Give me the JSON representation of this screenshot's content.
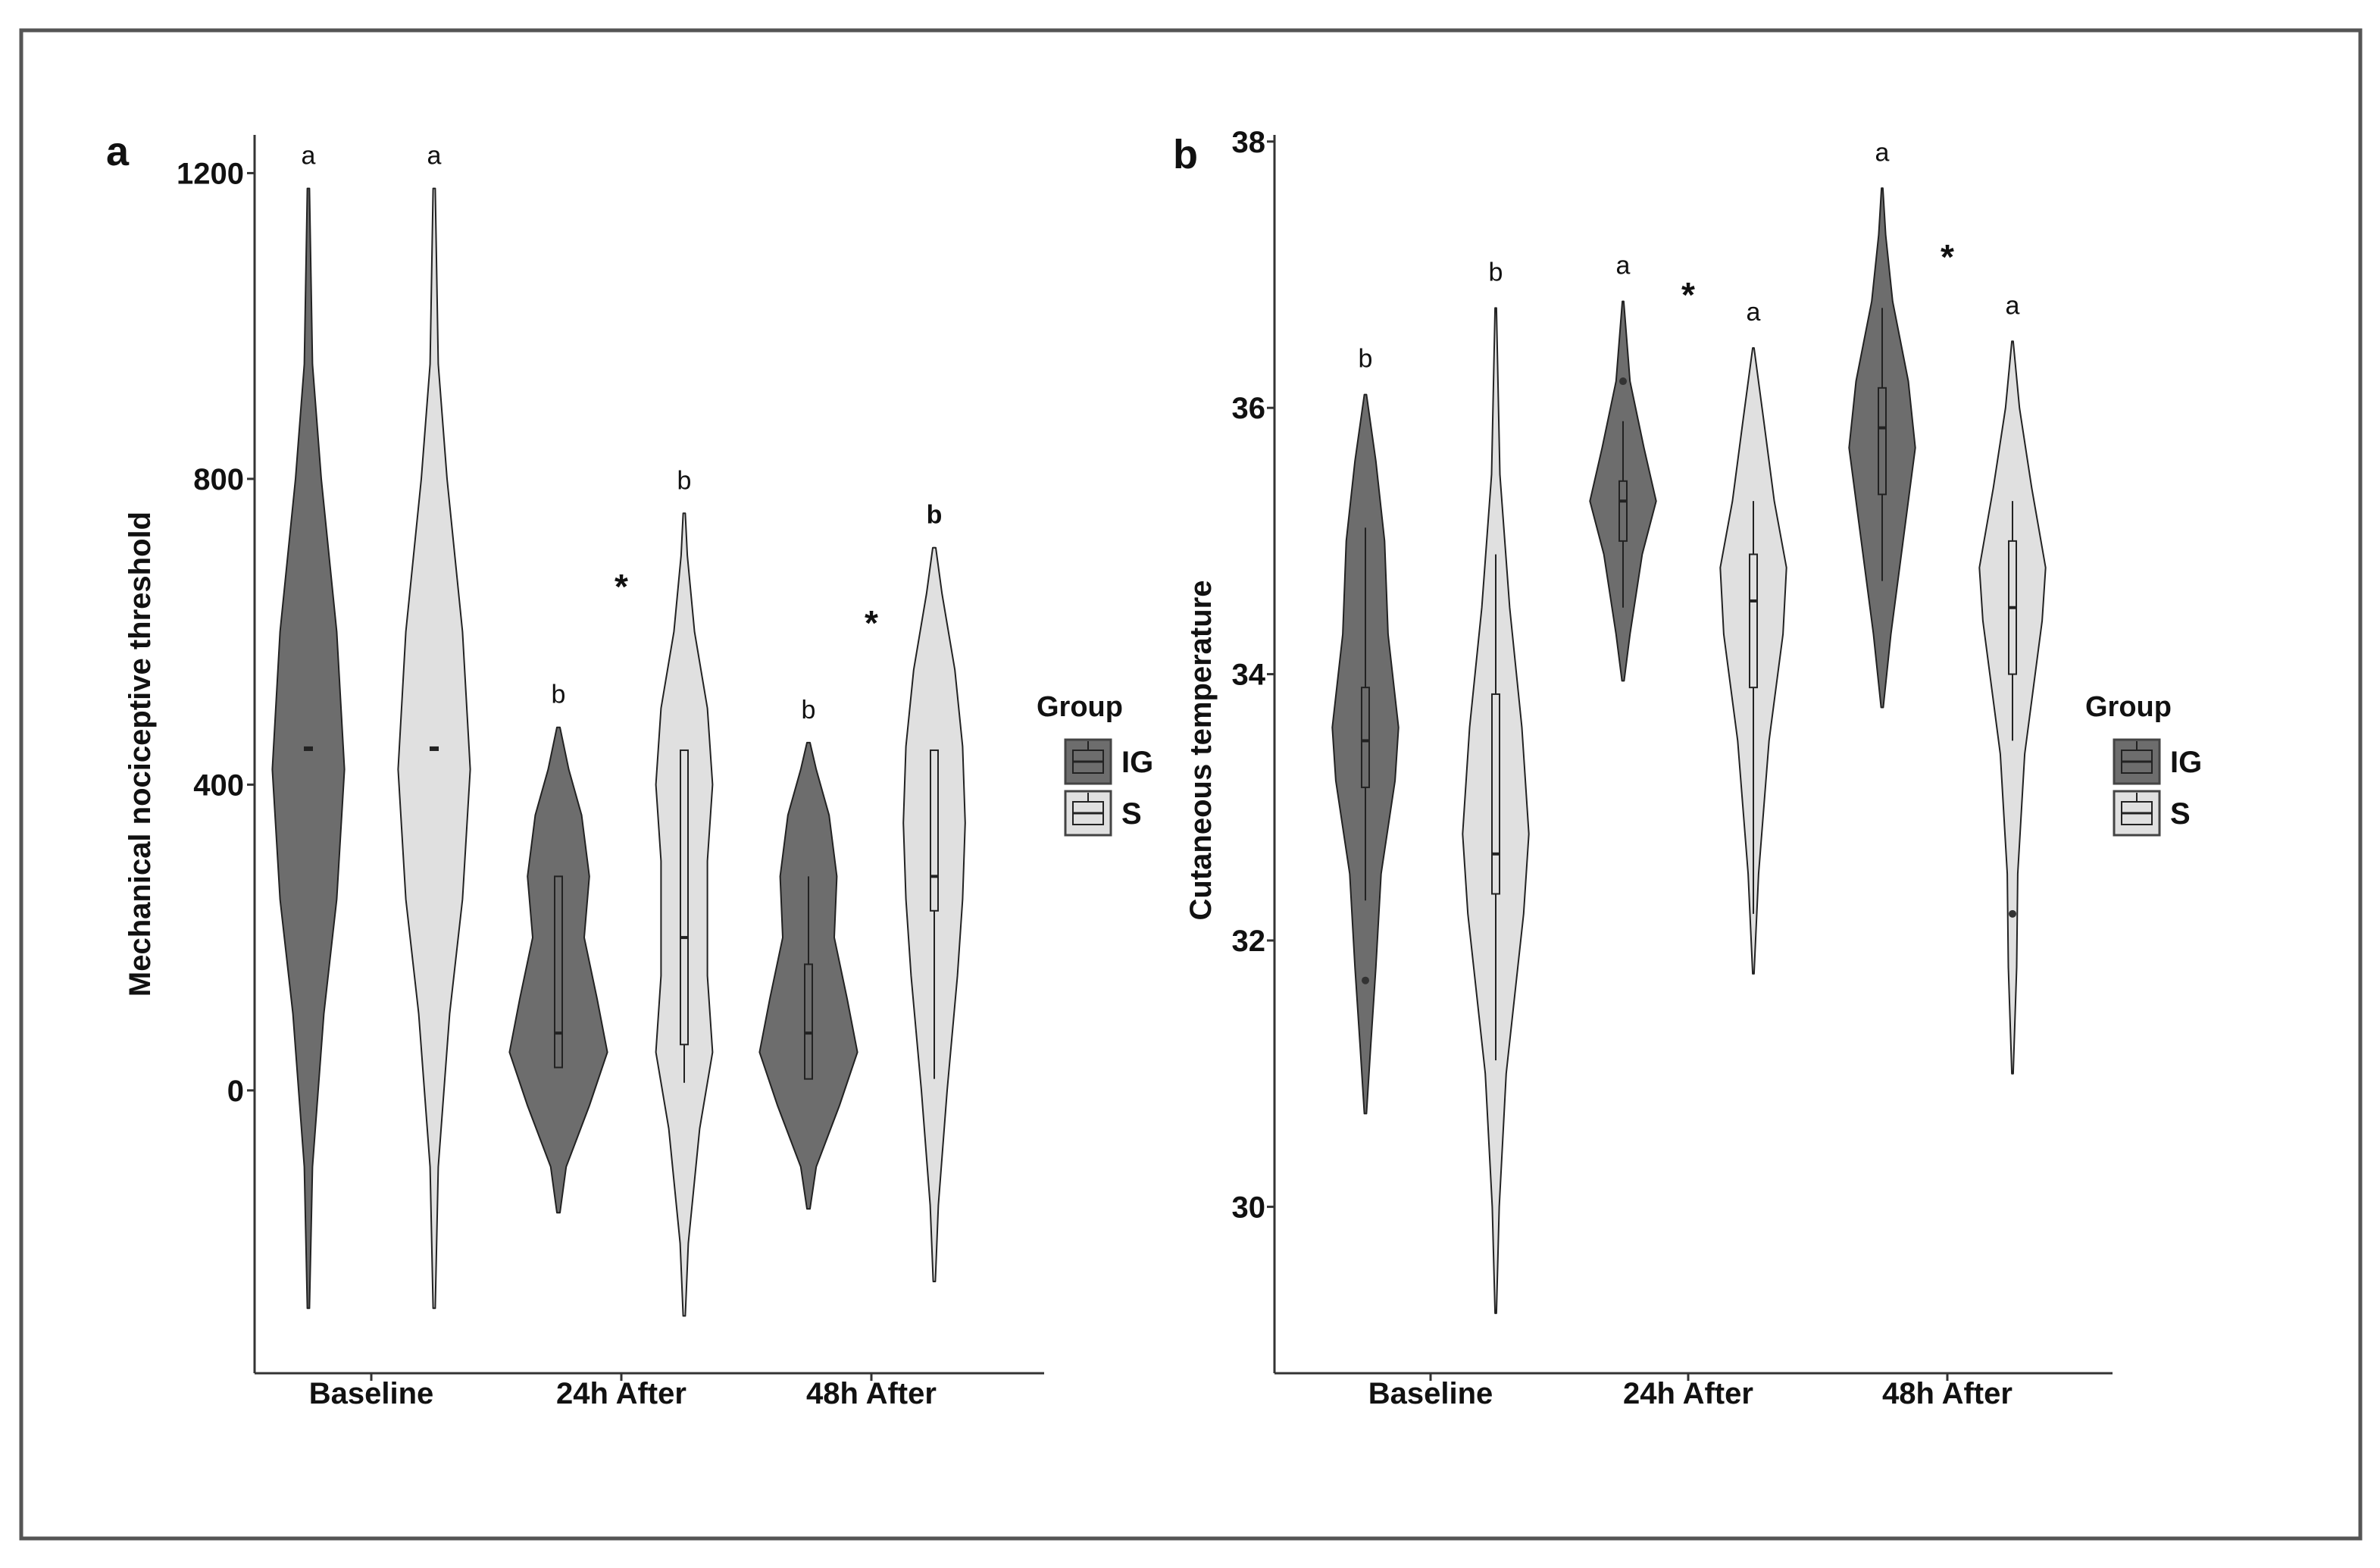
{
  "colors": {
    "IG": "#6d6d6d",
    "S": "#e0e0e0",
    "frame": "#555555",
    "axis": "#333333"
  },
  "chart_data": [
    {
      "panel": "a",
      "type": "violin",
      "ylabel": "Mechanical nociceptive threshold",
      "xlabel": "",
      "ylim": [
        -370,
        1250
      ],
      "yticks": [
        0,
        400,
        800,
        1200
      ],
      "ytick_labels": [
        "0",
        "400",
        "800",
        "1200"
      ],
      "categories": [
        "Baseline",
        "24h After",
        "48h After"
      ],
      "legend": {
        "title": "Group",
        "entries": [
          "IG",
          "S"
        ]
      },
      "groups": [
        {
          "name": "IG",
          "category": "Baseline",
          "letter": "a",
          "min": -285,
          "max": 1180,
          "profile": [
            [
              -285,
              0.02
            ],
            [
              -100,
              0.08
            ],
            [
              100,
              0.3
            ],
            [
              250,
              0.55
            ],
            [
              420,
              0.7
            ],
            [
              600,
              0.55
            ],
            [
              800,
              0.25
            ],
            [
              950,
              0.08
            ],
            [
              1180,
              0.02
            ]
          ],
          "box": {
            "q1": 445,
            "median": 447,
            "q3": 449,
            "wlo": 445,
            "whi": 449
          }
        },
        {
          "name": "S",
          "category": "Baseline",
          "letter": "a",
          "min": -285,
          "max": 1180,
          "profile": [
            [
              -285,
              0.02
            ],
            [
              -100,
              0.08
            ],
            [
              100,
              0.3
            ],
            [
              250,
              0.55
            ],
            [
              420,
              0.7
            ],
            [
              600,
              0.55
            ],
            [
              800,
              0.25
            ],
            [
              950,
              0.08
            ],
            [
              1180,
              0.02
            ]
          ],
          "box": {
            "q1": 445,
            "median": 447,
            "q3": 449,
            "wlo": 445,
            "whi": 449
          }
        },
        {
          "name": "IG",
          "category": "24h After",
          "letter": "b",
          "min": -160,
          "max": 475,
          "profile": [
            [
              -160,
              0.03
            ],
            [
              -100,
              0.15
            ],
            [
              -20,
              0.6
            ],
            [
              50,
              0.95
            ],
            [
              120,
              0.75
            ],
            [
              200,
              0.5
            ],
            [
              280,
              0.6
            ],
            [
              360,
              0.45
            ],
            [
              420,
              0.2
            ],
            [
              475,
              0.03
            ]
          ],
          "box": {
            "q1": 30,
            "median": 75,
            "q3": 280,
            "wlo": 30,
            "whi": 280
          }
        },
        {
          "name": "S",
          "category": "24h After",
          "letter": "b",
          "min": -295,
          "max": 755,
          "profile": [
            [
              -295,
              0.02
            ],
            [
              -200,
              0.08
            ],
            [
              -50,
              0.3
            ],
            [
              50,
              0.55
            ],
            [
              150,
              0.45
            ],
            [
              300,
              0.45
            ],
            [
              400,
              0.55
            ],
            [
              500,
              0.45
            ],
            [
              600,
              0.2
            ],
            [
              700,
              0.06
            ],
            [
              755,
              0.02
            ]
          ],
          "box": {
            "q1": 60,
            "median": 200,
            "q3": 445,
            "wlo": 10,
            "whi": 445
          }
        },
        {
          "name": "IG",
          "category": "48h After",
          "letter": "b",
          "min": -155,
          "max": 455,
          "profile": [
            [
              -155,
              0.03
            ],
            [
              -100,
              0.15
            ],
            [
              -20,
              0.6
            ],
            [
              50,
              0.95
            ],
            [
              120,
              0.75
            ],
            [
              200,
              0.5
            ],
            [
              280,
              0.55
            ],
            [
              360,
              0.4
            ],
            [
              420,
              0.15
            ],
            [
              455,
              0.03
            ]
          ],
          "box": {
            "q1": 15,
            "median": 75,
            "q3": 165,
            "wlo": 15,
            "whi": 280
          }
        },
        {
          "name": "S",
          "category": "48h After",
          "letter": "b",
          "min": -250,
          "max": 710,
          "profile": [
            [
              -250,
              0.02
            ],
            [
              -150,
              0.08
            ],
            [
              0,
              0.25
            ],
            [
              150,
              0.45
            ],
            [
              250,
              0.55
            ],
            [
              350,
              0.6
            ],
            [
              450,
              0.55
            ],
            [
              550,
              0.4
            ],
            [
              650,
              0.15
            ],
            [
              710,
              0.03
            ]
          ],
          "box": {
            "q1": 235,
            "median": 280,
            "q3": 445,
            "wlo": 15,
            "whi": 445
          }
        }
      ],
      "significance": [
        {
          "category": "24h After",
          "label": "*"
        },
        {
          "category": "48h After",
          "label": "*"
        }
      ]
    },
    {
      "panel": "b",
      "type": "violin",
      "ylabel": "Cutaneous temperature",
      "xlabel": "",
      "ylim": [
        28.75,
        38.05
      ],
      "yticks": [
        30,
        32,
        34,
        36,
        38
      ],
      "ytick_labels": [
        "30",
        "32",
        "34",
        "36",
        "38"
      ],
      "categories": [
        "Baseline",
        "24h After",
        "48h After"
      ],
      "legend": {
        "title": "Group",
        "entries": [
          "IG",
          "S"
        ]
      },
      "groups": [
        {
          "name": "IG",
          "category": "Baseline",
          "letter": "b",
          "min": 30.7,
          "max": 36.1,
          "profile": [
            [
              30.7,
              0.03
            ],
            [
              31.2,
              0.15
            ],
            [
              31.8,
              0.3
            ],
            [
              32.5,
              0.45
            ],
            [
              33.2,
              0.85
            ],
            [
              33.6,
              0.95
            ],
            [
              34.3,
              0.65
            ],
            [
              35,
              0.55
            ],
            [
              35.6,
              0.3
            ],
            [
              36.1,
              0.03
            ]
          ],
          "box": {
            "q1": 33.15,
            "median": 33.5,
            "q3": 33.9,
            "wlo": 32.3,
            "whi": 35.1
          },
          "outliers": [
            31.7
          ]
        },
        {
          "name": "S",
          "category": "Baseline",
          "letter": "b",
          "min": 29.2,
          "max": 36.75,
          "profile": [
            [
              29.2,
              0.02
            ],
            [
              30,
              0.1
            ],
            [
              31,
              0.3
            ],
            [
              32.2,
              0.8
            ],
            [
              32.8,
              0.95
            ],
            [
              33.6,
              0.75
            ],
            [
              34.5,
              0.4
            ],
            [
              35.5,
              0.12
            ],
            [
              36.75,
              0.02
            ]
          ],
          "box": {
            "q1": 32.35,
            "median": 32.65,
            "q3": 33.85,
            "wlo": 31.1,
            "whi": 34.9
          }
        },
        {
          "name": "IG",
          "category": "24h After",
          "letter": "a",
          "min": 33.95,
          "max": 36.8,
          "profile": [
            [
              33.95,
              0.03
            ],
            [
              34.3,
              0.2
            ],
            [
              34.9,
              0.55
            ],
            [
              35.3,
              0.95
            ],
            [
              35.7,
              0.6
            ],
            [
              36.2,
              0.2
            ],
            [
              36.6,
              0.08
            ],
            [
              36.8,
              0.02
            ]
          ],
          "box": {
            "q1": 35.0,
            "median": 35.3,
            "q3": 35.45,
            "wlo": 34.5,
            "whi": 35.9
          },
          "outliers": [
            36.2
          ]
        },
        {
          "name": "S",
          "category": "24h After",
          "letter": "a",
          "min": 31.75,
          "max": 36.45,
          "profile": [
            [
              31.75,
              0.02
            ],
            [
              32.5,
              0.15
            ],
            [
              33.5,
              0.45
            ],
            [
              34.3,
              0.85
            ],
            [
              34.8,
              0.95
            ],
            [
              35.3,
              0.6
            ],
            [
              35.9,
              0.3
            ],
            [
              36.45,
              0.02
            ]
          ],
          "box": {
            "q1": 33.9,
            "median": 34.55,
            "q3": 34.9,
            "wlo": 32.2,
            "whi": 35.3
          }
        },
        {
          "name": "IG",
          "category": "48h After",
          "letter": "a",
          "min": 33.75,
          "max": 37.65,
          "profile": [
            [
              33.75,
              0.03
            ],
            [
              34.3,
              0.25
            ],
            [
              35,
              0.6
            ],
            [
              35.7,
              0.95
            ],
            [
              36.2,
              0.75
            ],
            [
              36.8,
              0.3
            ],
            [
              37.3,
              0.1
            ],
            [
              37.65,
              0.02
            ]
          ],
          "box": {
            "q1": 35.35,
            "median": 35.85,
            "q3": 36.15,
            "wlo": 34.7,
            "whi": 36.75
          }
        },
        {
          "name": "S",
          "category": "48h After",
          "letter": "a",
          "min": 31.0,
          "max": 36.5,
          "profile": [
            [
              31,
              0.02
            ],
            [
              31.8,
              0.12
            ],
            [
              32.5,
              0.15
            ],
            [
              33.4,
              0.35
            ],
            [
              34.4,
              0.85
            ],
            [
              34.8,
              0.95
            ],
            [
              35.4,
              0.55
            ],
            [
              36,
              0.2
            ],
            [
              36.5,
              0.02
            ]
          ],
          "box": {
            "q1": 34.0,
            "median": 34.5,
            "q3": 35.0,
            "wlo": 33.5,
            "whi": 35.3
          },
          "outliers": [
            32.2
          ]
        }
      ],
      "significance": [
        {
          "category": "24h After",
          "label": "*"
        },
        {
          "category": "48h After",
          "label": "*"
        }
      ]
    }
  ]
}
